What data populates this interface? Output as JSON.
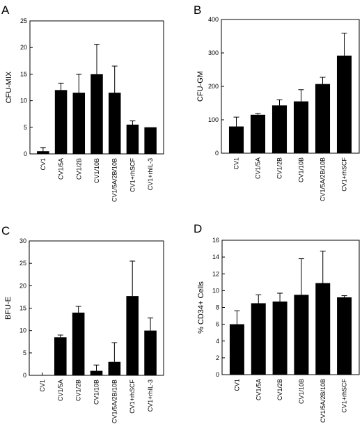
{
  "chart_data": [
    {
      "type": "bar",
      "panel": "A",
      "ylabel": "CFU-MIX",
      "ylim": [
        0,
        25
      ],
      "yticks": [
        0,
        5,
        10,
        15,
        20,
        25
      ],
      "categories": [
        "CV1",
        "CV1/5A",
        "CV1/2B",
        "CV1/10B",
        "CV1/5A/2B/10B",
        "CV1+rhSCF",
        "CV1+rhIL-3"
      ],
      "values": [
        0.5,
        12.0,
        11.5,
        15.0,
        11.5,
        5.5,
        5.0
      ],
      "errors": [
        0.7,
        1.3,
        3.5,
        5.6,
        5.0,
        0.7,
        0
      ],
      "color": "#000000"
    },
    {
      "type": "bar",
      "panel": "B",
      "ylabel": "CFU-GM",
      "ylim": [
        0,
        400
      ],
      "yticks": [
        0,
        100,
        200,
        300,
        400
      ],
      "categories": [
        "CV1",
        "CV1/5A",
        "CV1/2B",
        "CV1/10B",
        "CV1/5A/2B/10B",
        "CV1+rhSCF"
      ],
      "values": [
        80,
        115,
        143,
        155,
        207,
        292
      ],
      "errors": [
        28,
        4,
        17,
        35,
        20,
        67
      ],
      "color": "#000000"
    },
    {
      "type": "bar",
      "panel": "C",
      "ylabel": "BFU-E",
      "ylim": [
        0,
        30
      ],
      "yticks": [
        0,
        5,
        10,
        15,
        20,
        25,
        30
      ],
      "categories": [
        "CV1",
        "CV1/5A",
        "CV1/2B",
        "CV1/10B",
        "CV1/5A/2B/10B",
        "CV1+rhSCF",
        "CV1+rhIL-3"
      ],
      "values": [
        0,
        8.5,
        14.0,
        1.0,
        3.0,
        17.7,
        10.0
      ],
      "errors": [
        0,
        0.5,
        1.4,
        1.3,
        4.3,
        7.8,
        2.8
      ],
      "color": "#000000"
    },
    {
      "type": "bar",
      "panel": "D",
      "ylabel": "% CD34+ Cells",
      "ylim": [
        0,
        16
      ],
      "yticks": [
        0,
        2,
        4,
        6,
        8,
        10,
        12,
        14,
        16
      ],
      "categories": [
        "CV1",
        "CV1/5A",
        "CV1/2B",
        "CV1/10B",
        "CV1/5A/2B/10B",
        "CV1+rhSCF"
      ],
      "values": [
        6.0,
        8.5,
        8.7,
        9.5,
        10.9,
        9.2
      ],
      "errors": [
        1.6,
        1.0,
        1.0,
        4.3,
        3.8,
        0.2
      ],
      "color": "#000000"
    }
  ]
}
